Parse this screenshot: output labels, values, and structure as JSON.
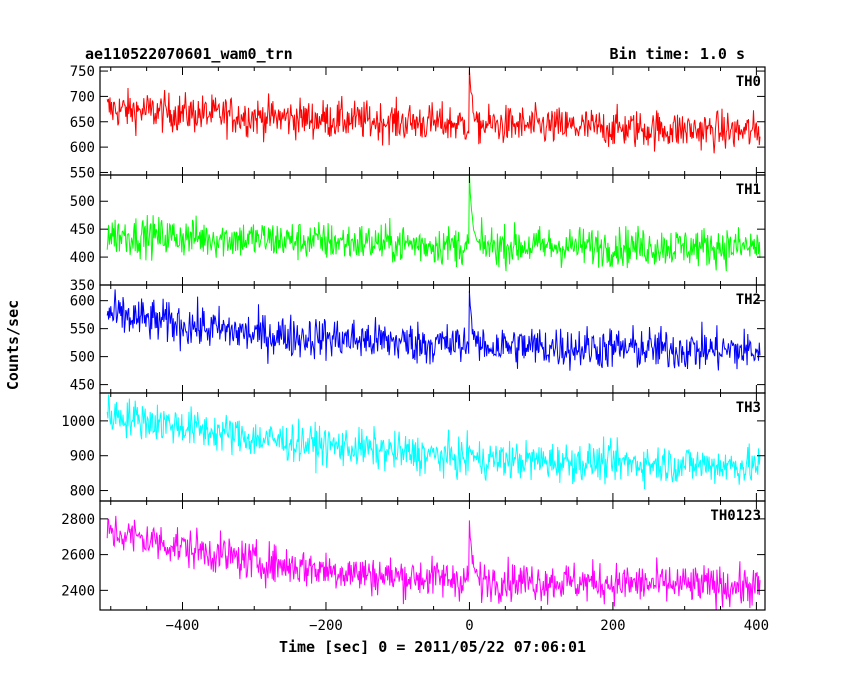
{
  "header": {
    "observation": "ae110522070601_wam0_trn",
    "bin_time": "Bin time: 1.0 s"
  },
  "chart_data": {
    "type": "line",
    "xlabel": "Time [sec] 0 = 2011/05/22 07:06:01",
    "ylabel": "Counts/sec",
    "xlim": [
      -515,
      412
    ],
    "x_ticks": [
      -400,
      -200,
      0,
      200,
      400
    ],
    "x_tick_labels": [
      "−400",
      "−200",
      "0",
      "200",
      "400"
    ],
    "x_range": [
      -505,
      405
    ],
    "bin_size": 1.0,
    "burst_time": 0,
    "series": [
      {
        "name": "TH0",
        "color": "#ff0000",
        "ylim": [
          545,
          758
        ],
        "yticks": [
          550,
          600,
          650,
          700,
          750
        ],
        "trend": [
          [
            -505,
            675
          ],
          [
            -300,
            660
          ],
          [
            0,
            645
          ],
          [
            405,
            630
          ]
        ],
        "noise": 38,
        "burst_peak": 758
      },
      {
        "name": "TH1",
        "color": "#00ff00",
        "ylim": [
          350,
          547
        ],
        "yticks": [
          350,
          400,
          450,
          500
        ],
        "trend": [
          [
            -505,
            440
          ],
          [
            -300,
            432
          ],
          [
            0,
            420
          ],
          [
            405,
            418
          ]
        ],
        "noise": 35,
        "burst_peak": 542
      },
      {
        "name": "TH2",
        "color": "#0000ff",
        "ylim": [
          435,
          628
        ],
        "yticks": [
          450,
          500,
          550,
          600
        ],
        "trend": [
          [
            -505,
            575
          ],
          [
            -300,
            540
          ],
          [
            0,
            520
          ],
          [
            405,
            510
          ]
        ],
        "noise": 38,
        "burst_peak": 615
      },
      {
        "name": "TH3",
        "color": "#00ffff",
        "ylim": [
          770,
          1080
        ],
        "yticks": [
          800,
          900,
          1000
        ],
        "trend": [
          [
            -505,
            1020
          ],
          [
            -300,
            950
          ],
          [
            0,
            890
          ],
          [
            405,
            870
          ]
        ],
        "noise": 55,
        "burst_peak": 930
      },
      {
        "name": "TH0123",
        "color": "#ff00ff",
        "ylim": [
          2290,
          2900
        ],
        "yticks": [
          2400,
          2600,
          2800
        ],
        "trend": [
          [
            -505,
            2730
          ],
          [
            -300,
            2560
          ],
          [
            -120,
            2480
          ],
          [
            0,
            2460
          ],
          [
            405,
            2420
          ]
        ],
        "noise": 110,
        "burst_peak": 2780
      }
    ]
  }
}
